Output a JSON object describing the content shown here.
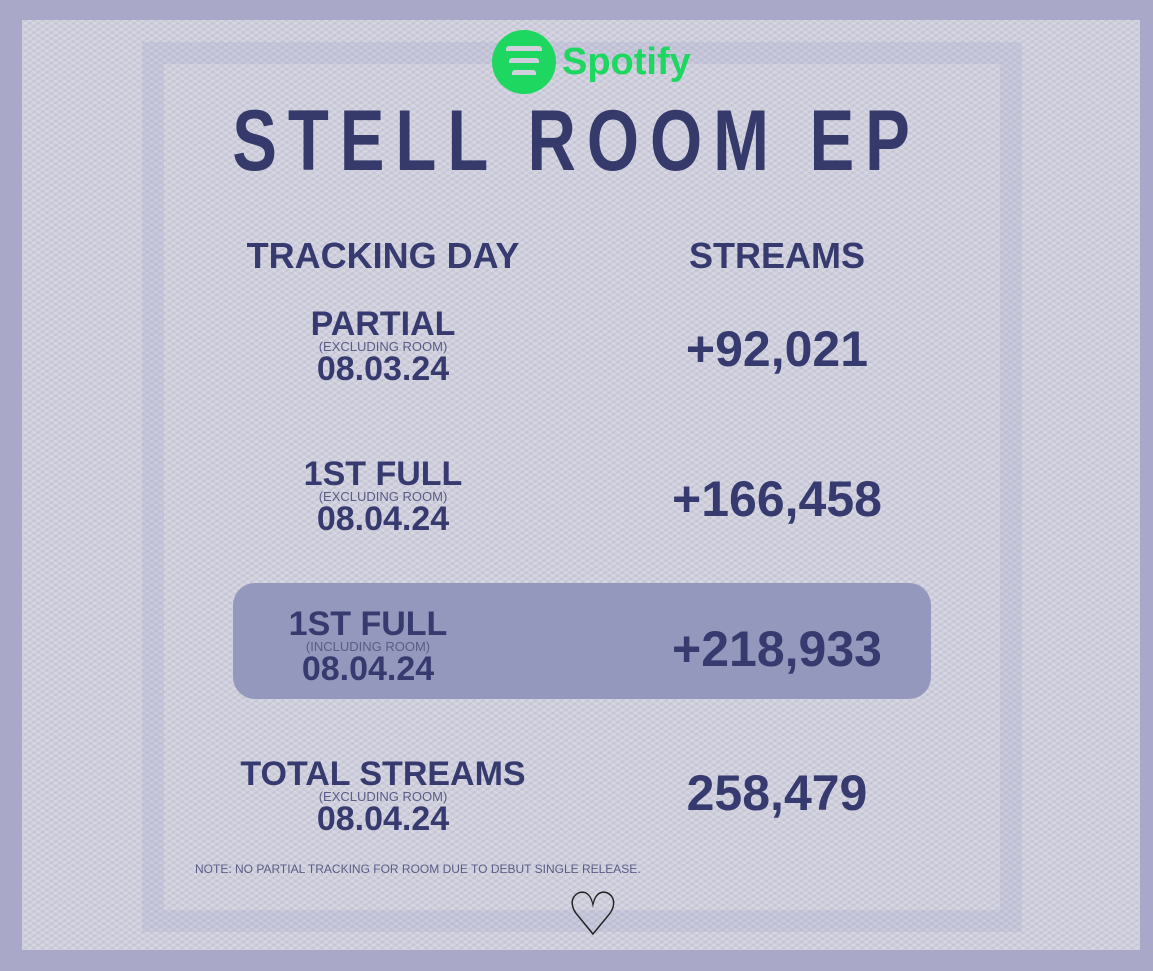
{
  "brand": {
    "name": "Spotify",
    "color": "#1ed760",
    "icon": "spotify-logo-icon"
  },
  "title": "STELL ROOM EP",
  "headers": {
    "day": "TRACKING DAY",
    "streams": "STREAMS"
  },
  "rows": [
    {
      "label": "PARTIAL",
      "note": "(EXCLUDING ROOM)",
      "date": "08.03.24",
      "value": "+92,021",
      "highlighted": false
    },
    {
      "label": "1ST FULL",
      "note": "(EXCLUDING ROOM)",
      "date": "08.04.24",
      "value": "+166,458",
      "highlighted": false
    },
    {
      "label": "1ST FULL",
      "note": "(INCLUDING ROOM)",
      "date": "08.04.24",
      "value": "+218,933",
      "highlighted": true
    },
    {
      "label": "TOTAL STREAMS",
      "note": "(EXCLUDING ROOM)",
      "date": "08.04.24",
      "value": "258,479",
      "highlighted": false
    }
  ],
  "footnote": "NOTE: NO PARTIAL TRACKING FOR ROOM DUE TO DEBUT SINGLE RELEASE.",
  "colors": {
    "text": "#363a6e",
    "highlight": "#9498bc",
    "frame": "#a9a8c8"
  }
}
